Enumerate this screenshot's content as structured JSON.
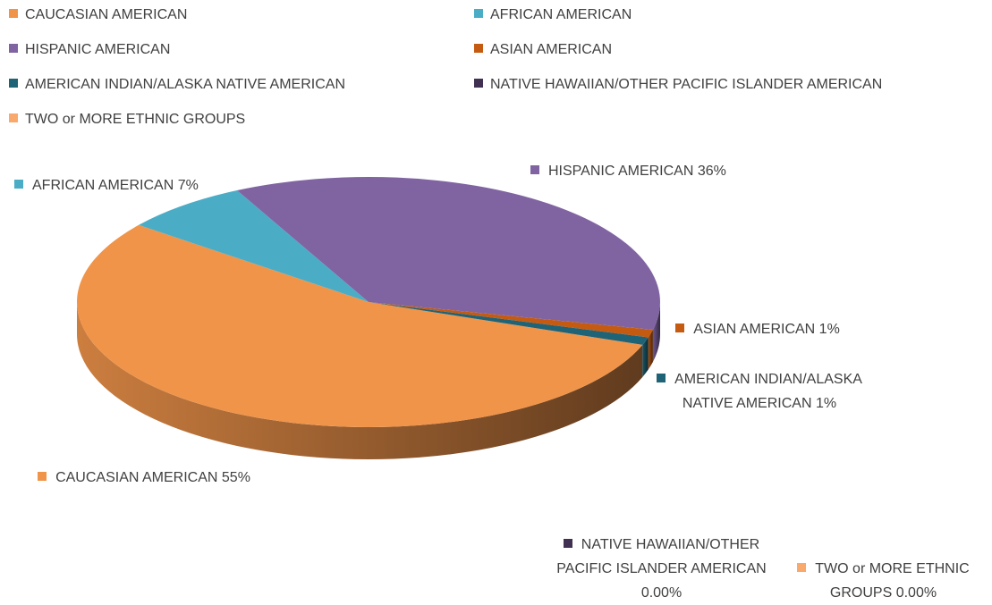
{
  "chart_data": {
    "type": "pie3d",
    "categories": [
      "CAUCASIAN AMERICAN",
      "AFRICAN AMERICAN",
      "HISPANIC AMERICAN",
      "ASIAN AMERICAN",
      "AMERICAN INDIAN/ALASKA NATIVE AMERICAN",
      "NATIVE HAWAIIAN/OTHER PACIFIC ISLANDER AMERICAN",
      "TWO or MORE ETHNIC GROUPS"
    ],
    "values": [
      55,
      7,
      36,
      1,
      1,
      0,
      0
    ],
    "value_labels": [
      "55%",
      "7%",
      "36%",
      "1%",
      "1%",
      "0.00%",
      "0.00%"
    ],
    "colors": [
      "#F0944A",
      "#4BACC6",
      "#8064A2",
      "#C55A11",
      "#1F6377",
      "#403152",
      "#F8A96B"
    ],
    "legend": "top"
  }
}
